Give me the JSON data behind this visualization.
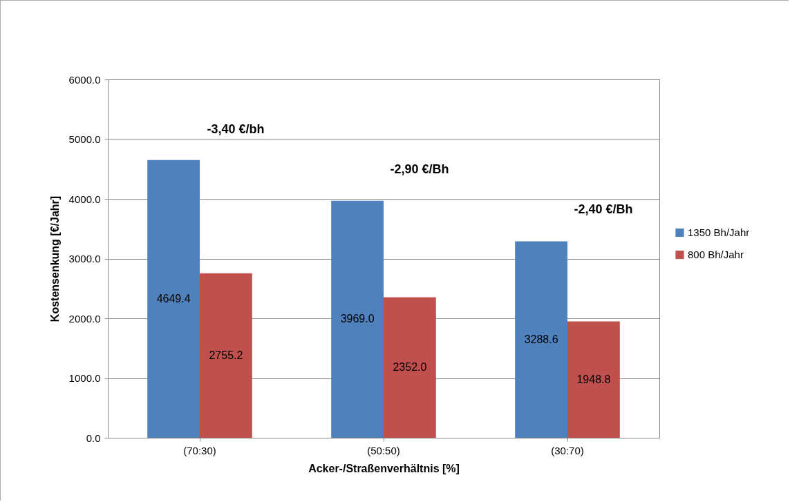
{
  "chart_data": {
    "type": "bar",
    "xlabel": "Acker-/Straßenverhältnis [%]",
    "ylabel": "Kostensenkung [€/Jahr]",
    "categories": [
      "(70:30)",
      "(50:50)",
      "(30:70)"
    ],
    "series": [
      {
        "name": "1350 Bh/Jahr",
        "color": "#4f81bd",
        "values": [
          4649.4,
          3969,
          3288.6
        ],
        "value_labels": [
          "4649.4",
          "3969.0",
          "3288.6"
        ]
      },
      {
        "name": "800 Bh/Jahr",
        "color": "#c0504d",
        "values": [
          2755.2,
          2352,
          1948.8
        ],
        "value_labels": [
          "2755.2",
          "2352.0",
          "1948.8"
        ]
      }
    ],
    "ylim": [
      0,
      6000
    ],
    "yticks": [
      {
        "value": 0,
        "label": "0.0"
      },
      {
        "value": 1000,
        "label": "1000.0"
      },
      {
        "value": 2000,
        "label": "2000.0"
      },
      {
        "value": 3000,
        "label": "3000.0"
      },
      {
        "value": 4000,
        "label": "4000.0"
      },
      {
        "value": 5000,
        "label": "5000.0"
      },
      {
        "value": 6000,
        "label": "6000.0"
      }
    ],
    "grid": "y",
    "legend": "right",
    "annotations": [
      "-3,40 €/bh",
      "-2,90 €/Bh",
      "-2,40 €/Bh"
    ]
  }
}
